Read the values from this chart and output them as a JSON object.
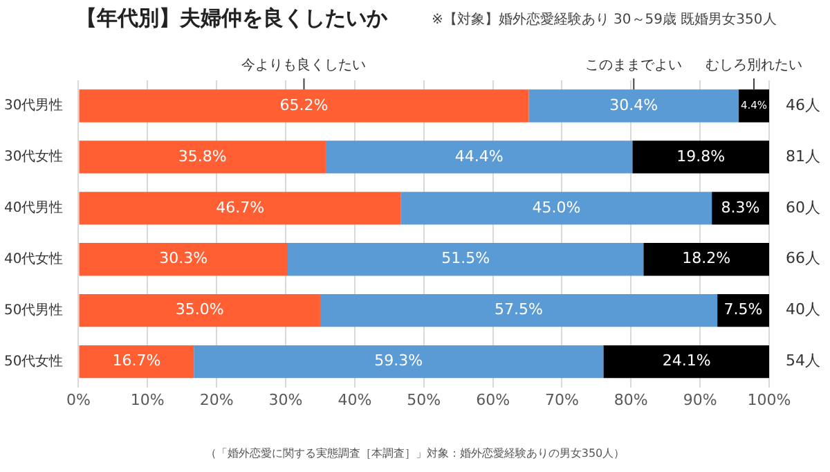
{
  "chart_data": {
    "type": "bar",
    "orientation": "horizontal",
    "stacked": true,
    "title": "【年代別】夫婦仲を良くしたいか",
    "subtitle": "※【対象】婚外恋愛経験あり 30～59歳 既婚男女350人",
    "categories": [
      "30代男性",
      "30代女性",
      "40代男性",
      "40代女性",
      "50代男性",
      "50代女性"
    ],
    "series": [
      {
        "name": "今よりも良くしたい",
        "color": "#ff5f33",
        "values": [
          65.2,
          35.8,
          46.7,
          30.3,
          35.0,
          16.7
        ],
        "value_labels": [
          "65.2%",
          "35.8%",
          "46.7%",
          "30.3%",
          "35.0%",
          "16.7%"
        ]
      },
      {
        "name": "このままでよい",
        "color": "#5b9bd5",
        "values": [
          30.4,
          44.4,
          45.0,
          51.5,
          57.5,
          59.3
        ],
        "value_labels": [
          "30.4%",
          "44.4%",
          "45.0%",
          "51.5%",
          "57.5%",
          "59.3%"
        ]
      },
      {
        "name": "むしろ別れたい",
        "color": "#000000",
        "values": [
          4.4,
          19.8,
          8.3,
          18.2,
          7.5,
          24.1
        ],
        "value_labels": [
          "4.4%",
          "19.8%",
          "8.3%",
          "18.2%",
          "7.5%",
          "24.1%"
        ]
      }
    ],
    "xlim": [
      0,
      100
    ],
    "xticks": [
      {
        "value": 0,
        "label": "0%"
      },
      {
        "value": 10,
        "label": "10%"
      },
      {
        "value": 20,
        "label": "20%"
      },
      {
        "value": 30,
        "label": "30%"
      },
      {
        "value": 40,
        "label": "40%"
      },
      {
        "value": 50,
        "label": "50%"
      },
      {
        "value": 60,
        "label": "60%"
      },
      {
        "value": 70,
        "label": "70%"
      },
      {
        "value": 80,
        "label": "80%"
      },
      {
        "value": 90,
        "label": "90%"
      },
      {
        "value": 100,
        "label": "100%"
      }
    ],
    "grid": "x",
    "annotations": [
      "46人",
      "81人",
      "60人",
      "66人",
      "40人",
      "54人",
      "（「婚外恋愛に関する実態調査［本調査］」対象：婚外恋愛経験ありの男女350人）"
    ]
  }
}
